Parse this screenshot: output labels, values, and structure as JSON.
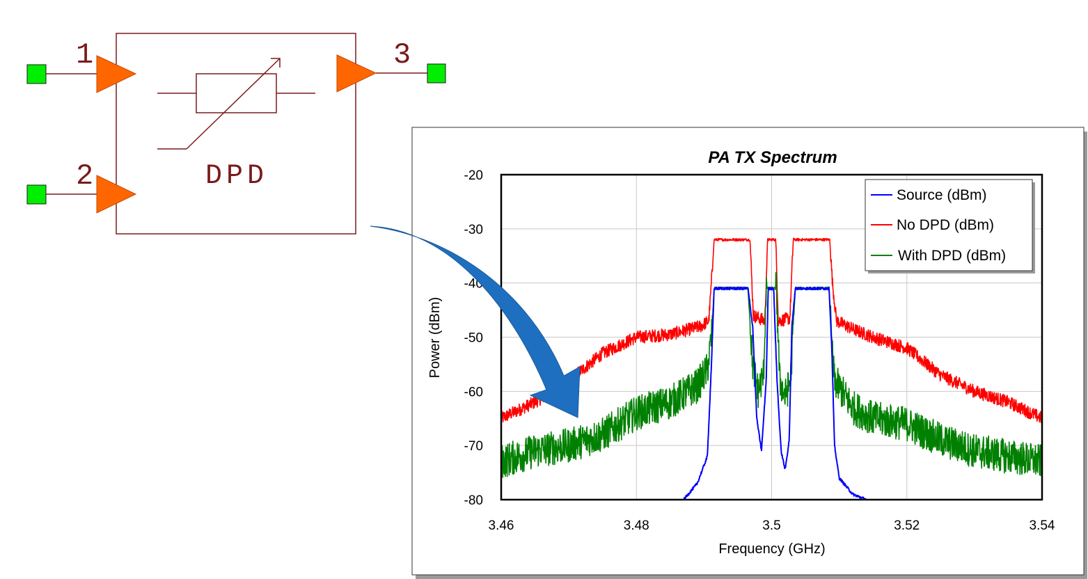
{
  "schematic": {
    "block_label": "DPD",
    "ports": [
      {
        "number": "1",
        "role": "input"
      },
      {
        "number": "2",
        "role": "input"
      },
      {
        "number": "3",
        "role": "output"
      }
    ],
    "colors": {
      "wire": "#7a1a1a",
      "amplifier": "#ff6600",
      "port_terminal": "#00ee00"
    }
  },
  "arrow": {
    "color": "#1f6fc0"
  },
  "chart_data": {
    "type": "line",
    "title": "PA TX Spectrum",
    "xlabel": "Frequency (GHz)",
    "ylabel": "Power (dBm)",
    "xlim": [
      3.46,
      3.54
    ],
    "ylim": [
      -80,
      -20
    ],
    "xticks": [
      "3.46",
      "3.48",
      "3.5",
      "3.52",
      "3.54"
    ],
    "yticks": [
      "-20",
      "-30",
      "-40",
      "-50",
      "-60",
      "-70",
      "-80"
    ],
    "grid": true,
    "legend_position": "top-right",
    "series": [
      {
        "name": "Source (dBm)",
        "color": "#0000ff",
        "x": [
          3.487,
          3.489,
          3.4905,
          3.4911,
          3.4915,
          3.4965,
          3.4972,
          3.4978,
          3.4985,
          3.4992,
          3.4995,
          3.5003,
          3.5008,
          3.5014,
          3.502,
          3.5026,
          3.503,
          3.5035,
          3.5085,
          3.5089,
          3.5093,
          3.51,
          3.512,
          3.514
        ],
        "y": [
          -80,
          -77,
          -72,
          -55,
          -41,
          -41,
          -48,
          -65,
          -71,
          -58,
          -41,
          -41,
          -58,
          -71,
          -74.5,
          -69,
          -48,
          -41,
          -41,
          -52,
          -70,
          -76,
          -79,
          -80
        ]
      },
      {
        "name": "No DPD (dBm)",
        "color": "#ff0000",
        "x": [
          3.46,
          3.465,
          3.47,
          3.475,
          3.48,
          3.485,
          3.4895,
          3.4907,
          3.4911,
          3.4915,
          3.4968,
          3.4973,
          3.499,
          3.4994,
          3.5006,
          3.501,
          3.5027,
          3.5032,
          3.5086,
          3.509,
          3.5096,
          3.512,
          3.515,
          3.52,
          3.525,
          3.53,
          3.535,
          3.54
        ],
        "y": [
          -65,
          -62,
          -58,
          -53,
          -50,
          -49.5,
          -48,
          -47,
          -40,
          -32,
          -32,
          -46,
          -47,
          -32,
          -32,
          -47,
          -46.5,
          -32,
          -32,
          -40,
          -47,
          -48.5,
          -50,
          -52,
          -57,
          -60,
          -62,
          -65
        ]
      },
      {
        "name": "With DPD (dBm)",
        "color": "#008000",
        "x": [
          3.46,
          3.465,
          3.47,
          3.475,
          3.48,
          3.485,
          3.489,
          3.4905,
          3.4911,
          3.4915,
          3.4965,
          3.4972,
          3.498,
          3.4988,
          3.4992,
          3.5007,
          3.5012,
          3.502,
          3.5028,
          3.5035,
          3.5085,
          3.5089,
          3.5093,
          3.512,
          3.515,
          3.52,
          3.525,
          3.53,
          3.535,
          3.54
        ],
        "y": [
          -73,
          -71,
          -70,
          -68,
          -64,
          -62,
          -59,
          -56,
          -50,
          -41,
          -41,
          -55,
          -60,
          -57,
          -41,
          -41,
          -58,
          -61,
          -58,
          -41,
          -41,
          -52,
          -58,
          -63,
          -65,
          -66,
          -69,
          -71,
          -72,
          -73
        ]
      }
    ]
  }
}
